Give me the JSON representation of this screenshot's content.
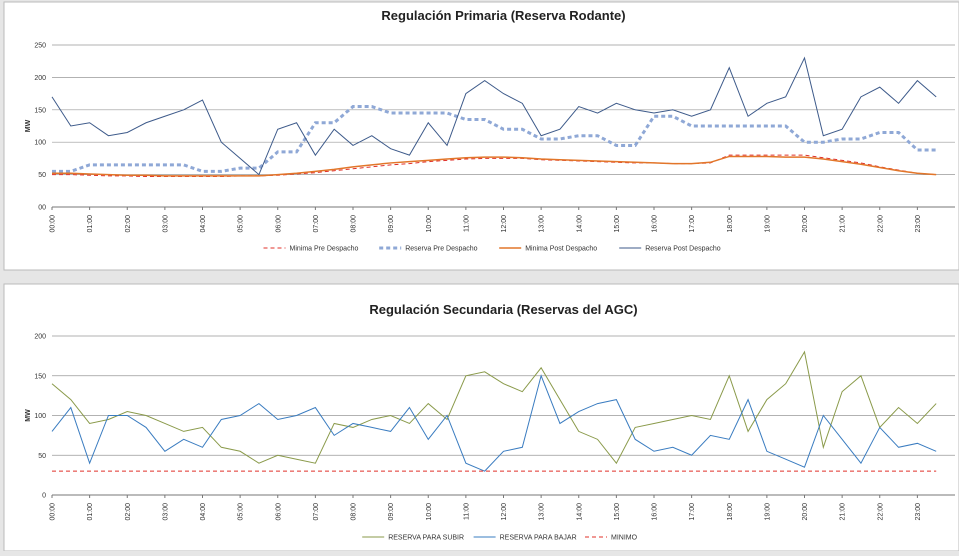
{
  "chart_data": [
    {
      "type": "line",
      "title": "Regulación Primaria (Reserva Rodante)",
      "y_label": "MW",
      "x": [
        0,
        0.5,
        1,
        1.5,
        2,
        2.5,
        3,
        3.5,
        4,
        4.5,
        5,
        5.5,
        6,
        6.5,
        7,
        7.5,
        8,
        8.5,
        9,
        9.5,
        10,
        10.5,
        11,
        11.5,
        12,
        12.5,
        13,
        13.5,
        14,
        14.5,
        15,
        15.5,
        16,
        16.5,
        17,
        17.5,
        18,
        18.5,
        19,
        19.5,
        20,
        20.5,
        21,
        21.5,
        22,
        22.5,
        23,
        23.5
      ],
      "xlim": [
        0,
        24
      ],
      "xticks": [
        {
          "value": 0,
          "label": "00:00"
        },
        {
          "value": 1,
          "label": "01:00"
        },
        {
          "value": 2,
          "label": "02:00"
        },
        {
          "value": 3,
          "label": "03:00"
        },
        {
          "value": 4,
          "label": "04:00"
        },
        {
          "value": 5,
          "label": "05:00"
        },
        {
          "value": 6,
          "label": "06:00"
        },
        {
          "value": 7,
          "label": "07:00"
        },
        {
          "value": 8,
          "label": "08:00"
        },
        {
          "value": 9,
          "label": "09:00"
        },
        {
          "value": 10,
          "label": "10:00"
        },
        {
          "value": 11,
          "label": "11:00"
        },
        {
          "value": 12,
          "label": "12:00"
        },
        {
          "value": 13,
          "label": "13:00"
        },
        {
          "value": 14,
          "label": "14:00"
        },
        {
          "value": 15,
          "label": "15:00"
        },
        {
          "value": 16,
          "label": "16:00"
        },
        {
          "value": 17,
          "label": "17:00"
        },
        {
          "value": 18,
          "label": "18:00"
        },
        {
          "value": 19,
          "label": "19:00"
        },
        {
          "value": 20,
          "label": "20:00"
        },
        {
          "value": 21,
          "label": "21:00"
        },
        {
          "value": 22,
          "label": "22:00"
        },
        {
          "value": 23,
          "label": "23:00"
        }
      ],
      "ylim": [
        0,
        250
      ],
      "yticks": [
        {
          "value": 0,
          "label": "00"
        },
        50,
        100,
        150,
        200,
        250
      ],
      "grid": true,
      "series": [
        {
          "name": "Minima Pre Despacho",
          "color": "#e0302a",
          "dash": "dashed",
          "width": 1,
          "values": [
            50,
            50,
            49,
            48,
            48,
            47,
            47,
            47,
            47,
            47,
            48,
            48,
            49,
            51,
            53,
            56,
            59,
            62,
            65,
            67,
            70,
            72,
            74,
            75,
            75,
            75,
            73,
            72,
            71,
            70,
            69,
            68,
            68,
            67,
            67,
            68,
            80,
            80,
            80,
            80,
            80,
            76,
            72,
            68,
            62,
            57,
            52,
            50
          ]
        },
        {
          "name": "Reserva Pre Despacho",
          "color": "#8fa8d6",
          "dash": "dashed",
          "width": 3,
          "values": [
            55,
            55,
            65,
            65,
            65,
            65,
            65,
            65,
            55,
            55,
            60,
            60,
            85,
            85,
            130,
            130,
            155,
            155,
            145,
            145,
            145,
            145,
            135,
            135,
            120,
            120,
            105,
            105,
            110,
            110,
            95,
            95,
            140,
            140,
            125,
            125,
            125,
            125,
            125,
            125,
            100,
            100,
            105,
            105,
            115,
            115,
            88,
            88
          ]
        },
        {
          "name": "Minima Post Despacho",
          "color": "#e2762a",
          "dash": "solid",
          "width": 1.5,
          "values": [
            52,
            52,
            51,
            50,
            49,
            49,
            48,
            48,
            48,
            48,
            48,
            48,
            50,
            52,
            55,
            58,
            62,
            65,
            68,
            70,
            72,
            74,
            76,
            77,
            77,
            76,
            74,
            73,
            72,
            71,
            70,
            69,
            68,
            67,
            67,
            69,
            78,
            78,
            78,
            77,
            77,
            74,
            70,
            66,
            61,
            56,
            52,
            50
          ]
        },
        {
          "name": "Reserva Post Despacho",
          "color": "#3d5a8a",
          "dash": "solid",
          "width": 1,
          "values": [
            170,
            125,
            130,
            110,
            115,
            130,
            140,
            150,
            165,
            100,
            75,
            50,
            120,
            130,
            80,
            120,
            95,
            110,
            90,
            80,
            130,
            95,
            175,
            195,
            175,
            160,
            110,
            120,
            155,
            145,
            160,
            150,
            145,
            150,
            140,
            150,
            215,
            140,
            160,
            170,
            230,
            110,
            120,
            170,
            185,
            160,
            195,
            170
          ]
        }
      ]
    },
    {
      "type": "line",
      "title": "Regulación Secundaria (Reservas del AGC)",
      "y_label": "MW",
      "x": [
        0,
        0.5,
        1,
        1.5,
        2,
        2.5,
        3,
        3.5,
        4,
        4.5,
        5,
        5.5,
        6,
        6.5,
        7,
        7.5,
        8,
        8.5,
        9,
        9.5,
        10,
        10.5,
        11,
        11.5,
        12,
        12.5,
        13,
        13.5,
        14,
        14.5,
        15,
        15.5,
        16,
        16.5,
        17,
        17.5,
        18,
        18.5,
        19,
        19.5,
        20,
        20.5,
        21,
        21.5,
        22,
        22.5,
        23,
        23.5
      ],
      "xlim": [
        0,
        24
      ],
      "xticks": [
        {
          "value": 0,
          "label": "00:00"
        },
        {
          "value": 1,
          "label": "01:00"
        },
        {
          "value": 2,
          "label": "02:00"
        },
        {
          "value": 3,
          "label": "03:00"
        },
        {
          "value": 4,
          "label": "04:00"
        },
        {
          "value": 5,
          "label": "05:00"
        },
        {
          "value": 6,
          "label": "06:00"
        },
        {
          "value": 7,
          "label": "07:00"
        },
        {
          "value": 8,
          "label": "08:00"
        },
        {
          "value": 9,
          "label": "09:00"
        },
        {
          "value": 10,
          "label": "10:00"
        },
        {
          "value": 11,
          "label": "11:00"
        },
        {
          "value": 12,
          "label": "12:00"
        },
        {
          "value": 13,
          "label": "13:00"
        },
        {
          "value": 14,
          "label": "14:00"
        },
        {
          "value": 15,
          "label": "15:00"
        },
        {
          "value": 16,
          "label": "16:00"
        },
        {
          "value": 17,
          "label": "17:00"
        },
        {
          "value": 18,
          "label": "18:00"
        },
        {
          "value": 19,
          "label": "19:00"
        },
        {
          "value": 20,
          "label": "20:00"
        },
        {
          "value": 21,
          "label": "21:00"
        },
        {
          "value": 22,
          "label": "22:00"
        },
        {
          "value": 23,
          "label": "23:00"
        }
      ],
      "ylim": [
        0,
        200
      ],
      "yticks": [
        0,
        50,
        100,
        150,
        200
      ],
      "grid": true,
      "series": [
        {
          "name": "RESERVA PARA SUBIR",
          "color": "#8a9a4a",
          "dash": "solid",
          "width": 1,
          "values": [
            140,
            120,
            90,
            95,
            105,
            100,
            90,
            80,
            85,
            60,
            55,
            40,
            50,
            45,
            40,
            90,
            85,
            95,
            100,
            90,
            115,
            95,
            150,
            155,
            140,
            130,
            160,
            120,
            80,
            70,
            40,
            85,
            90,
            95,
            100,
            95,
            150,
            80,
            120,
            140,
            180,
            60,
            130,
            150,
            85,
            110,
            90,
            115
          ]
        },
        {
          "name": "RESERVA PARA BAJAR",
          "color": "#3a7cc0",
          "dash": "solid",
          "width": 1,
          "values": [
            80,
            110,
            40,
            100,
            100,
            85,
            55,
            70,
            60,
            95,
            100,
            115,
            95,
            100,
            110,
            75,
            90,
            85,
            80,
            110,
            70,
            100,
            40,
            30,
            55,
            60,
            150,
            90,
            105,
            115,
            120,
            70,
            55,
            60,
            50,
            75,
            70,
            120,
            55,
            45,
            35,
            100,
            70,
            40,
            85,
            60,
            65,
            55
          ]
        },
        {
          "name": "MINIMO",
          "color": "#e0302a",
          "dash": "dashed",
          "width": 1,
          "values": [
            30,
            30,
            30,
            30,
            30,
            30,
            30,
            30,
            30,
            30,
            30,
            30,
            30,
            30,
            30,
            30,
            30,
            30,
            30,
            30,
            30,
            30,
            30,
            30,
            30,
            30,
            30,
            30,
            30,
            30,
            30,
            30,
            30,
            30,
            30,
            30,
            30,
            30,
            30,
            30,
            30,
            30,
            30,
            30,
            30,
            30,
            30,
            30
          ]
        }
      ]
    }
  ]
}
